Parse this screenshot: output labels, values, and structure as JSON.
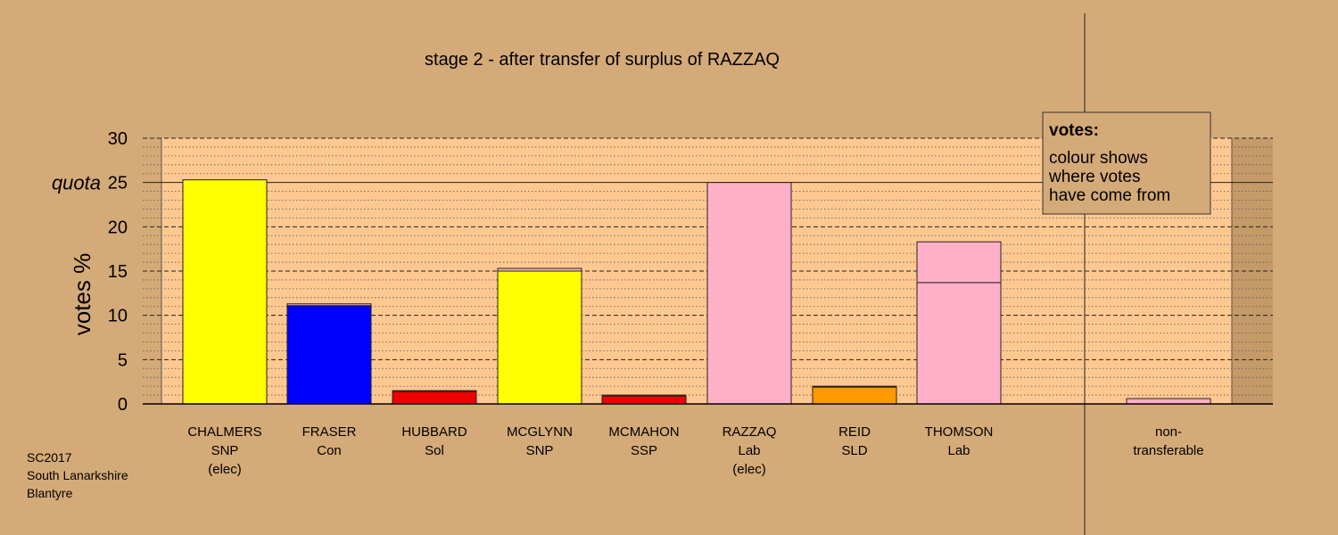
{
  "chart_data": {
    "type": "bar",
    "title": "stage 2 - after transfer of surplus of RAZZAQ",
    "ylabel": "votes %",
    "ylim": [
      0,
      30
    ],
    "yticks": [
      0,
      5,
      10,
      15,
      20,
      25,
      30
    ],
    "quota": {
      "label": "quota",
      "value": 25
    },
    "grid": true,
    "categories": [
      {
        "lines": [
          "CHALMERS",
          "SNP",
          "(elec)"
        ]
      },
      {
        "lines": [
          "FRASER",
          "Con"
        ]
      },
      {
        "lines": [
          "HUBBARD",
          "Sol"
        ]
      },
      {
        "lines": [
          "MCGLYNN",
          "SNP"
        ]
      },
      {
        "lines": [
          "MCMAHON",
          "SSP"
        ]
      },
      {
        "lines": [
          "RAZZAQ",
          "Lab",
          "(elec)"
        ]
      },
      {
        "lines": [
          "REID",
          "SLD"
        ]
      },
      {
        "lines": [
          "THOMSON",
          "Lab"
        ]
      },
      {
        "lines": [
          "non-",
          "transferable"
        ]
      }
    ],
    "bars": [
      {
        "segments": [
          {
            "value": 25.3,
            "color": "#ffff00"
          }
        ]
      },
      {
        "segments": [
          {
            "value": 11.1,
            "color": "#0000ff"
          },
          {
            "value": 0.2,
            "color": "#ffb0c8"
          }
        ]
      },
      {
        "segments": [
          {
            "value": 1.4,
            "color": "#ee0000"
          },
          {
            "value": 0.1,
            "color": "#ffb0c8"
          }
        ]
      },
      {
        "segments": [
          {
            "value": 15.0,
            "color": "#ffff00"
          },
          {
            "value": 0.3,
            "color": "#ffb0c8"
          }
        ]
      },
      {
        "segments": [
          {
            "value": 0.9,
            "color": "#ee0000"
          },
          {
            "value": 0.1,
            "color": "#ffb0c8"
          }
        ]
      },
      {
        "segments": [
          {
            "value": 25.0,
            "color": "#ffb0c8"
          }
        ]
      },
      {
        "segments": [
          {
            "value": 1.9,
            "color": "#ff9900"
          },
          {
            "value": 0.1,
            "color": "#ffb0c8"
          }
        ]
      },
      {
        "segments": [
          {
            "value": 13.7,
            "color": "#ffb0c8"
          },
          {
            "value": 4.6,
            "color": "#ffb0c8"
          }
        ]
      },
      {
        "segments": [
          {
            "value": 0.6,
            "color": "#ffb0c8"
          }
        ]
      }
    ],
    "legend": {
      "title": "votes:",
      "lines": [
        "colour shows",
        "where votes",
        "have come from"
      ],
      "position": "top-right"
    }
  },
  "footer": {
    "lines": [
      "SC2017",
      "South Lanarkshire",
      "Blantyre"
    ]
  },
  "colors": {
    "background": "#d4aa78",
    "plot_area": "#ffc890",
    "gutter": "#c49a68"
  }
}
